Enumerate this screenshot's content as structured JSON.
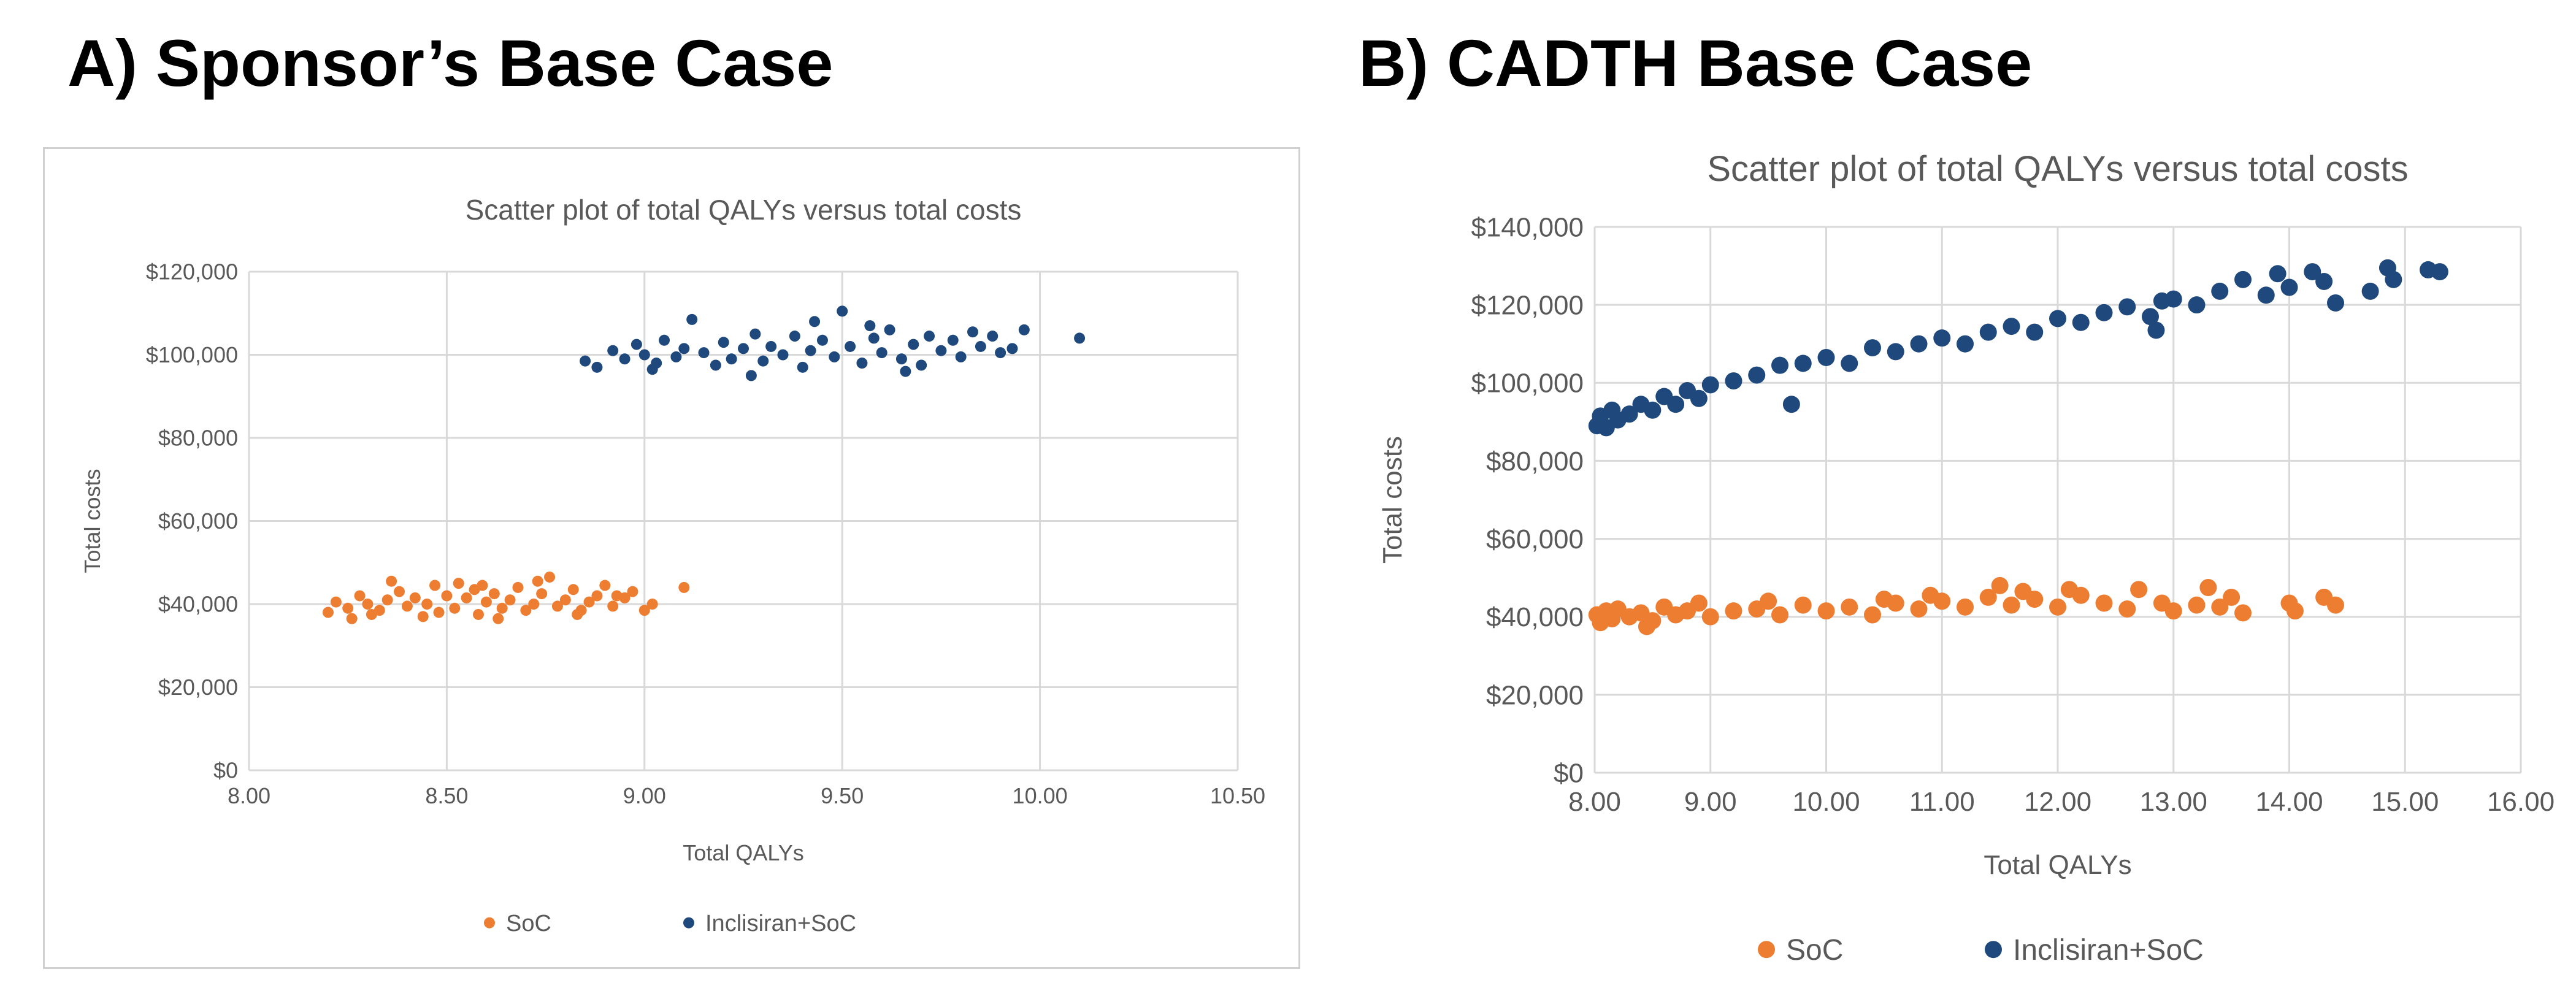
{
  "panels": {
    "a": {
      "heading": "A) Sponsor’s Base Case"
    },
    "b": {
      "heading": "B) CADTH Base Case"
    }
  },
  "colors": {
    "soc": "#ED7D31",
    "inclisiran": "#1F497D",
    "grid": "#d9d9d9",
    "axis_text": "#595959"
  },
  "chart_data": [
    {
      "type": "scatter",
      "title": "Scatter plot of total QALYs versus total costs",
      "xlabel": "Total QALYs",
      "ylabel": "Total costs",
      "xlim": [
        8.0,
        10.5
      ],
      "ylim": [
        0,
        120000
      ],
      "x_ticks": [
        "8.00",
        "8.50",
        "9.00",
        "9.50",
        "10.00",
        "10.50"
      ],
      "y_ticks": [
        "$0",
        "$20,000",
        "$40,000",
        "$60,000",
        "$80,000",
        "$100,000",
        "$120,000"
      ],
      "grid": true,
      "legend_position": "bottom",
      "series": [
        {
          "name": "SoC",
          "color": "#ED7D31",
          "points": [
            [
              8.2,
              38000
            ],
            [
              8.22,
              40500
            ],
            [
              8.25,
              39000
            ],
            [
              8.26,
              36500
            ],
            [
              8.28,
              42000
            ],
            [
              8.3,
              40000
            ],
            [
              8.33,
              38500
            ],
            [
              8.35,
              41000
            ],
            [
              8.38,
              43000
            ],
            [
              8.4,
              39500
            ],
            [
              8.42,
              41500
            ],
            [
              8.45,
              40000
            ],
            [
              8.47,
              44500
            ],
            [
              8.48,
              38000
            ],
            [
              8.5,
              42000
            ],
            [
              8.52,
              39000
            ],
            [
              8.55,
              41500
            ],
            [
              8.57,
              43500
            ],
            [
              8.58,
              37500
            ],
            [
              8.6,
              40500
            ],
            [
              8.62,
              42500
            ],
            [
              8.64,
              39000
            ],
            [
              8.66,
              41000
            ],
            [
              8.68,
              44000
            ],
            [
              8.7,
              38500
            ],
            [
              8.72,
              40000
            ],
            [
              8.74,
              42500
            ],
            [
              8.76,
              46500
            ],
            [
              8.78,
              39500
            ],
            [
              8.8,
              41000
            ],
            [
              8.82,
              43500
            ],
            [
              8.84,
              38500
            ],
            [
              8.86,
              40500
            ],
            [
              8.88,
              42000
            ],
            [
              8.9,
              44500
            ],
            [
              8.92,
              39500
            ],
            [
              8.95,
              41500
            ],
            [
              8.97,
              43000
            ],
            [
              9.0,
              38500
            ],
            [
              9.02,
              40000
            ],
            [
              9.1,
              44000
            ],
            [
              8.36,
              45500
            ],
            [
              8.44,
              37000
            ],
            [
              8.53,
              45000
            ],
            [
              8.63,
              36500
            ],
            [
              8.73,
              45500
            ],
            [
              8.83,
              37500
            ],
            [
              8.93,
              42000
            ],
            [
              8.31,
              37500
            ],
            [
              8.59,
              44500
            ]
          ]
        },
        {
          "name": "Inclisiran+SoC",
          "color": "#1F497D",
          "points": [
            [
              8.85,
              98500
            ],
            [
              8.88,
              97000
            ],
            [
              8.92,
              101000
            ],
            [
              8.95,
              99000
            ],
            [
              8.98,
              102500
            ],
            [
              9.0,
              100000
            ],
            [
              9.03,
              98000
            ],
            [
              9.05,
              103500
            ],
            [
              9.08,
              99500
            ],
            [
              9.1,
              101500
            ],
            [
              9.12,
              108500
            ],
            [
              9.15,
              100500
            ],
            [
              9.18,
              97500
            ],
            [
              9.2,
              103000
            ],
            [
              9.22,
              99000
            ],
            [
              9.25,
              101500
            ],
            [
              9.28,
              105000
            ],
            [
              9.3,
              98500
            ],
            [
              9.32,
              102000
            ],
            [
              9.35,
              100000
            ],
            [
              9.38,
              104500
            ],
            [
              9.4,
              97000
            ],
            [
              9.42,
              101000
            ],
            [
              9.45,
              103500
            ],
            [
              9.48,
              99500
            ],
            [
              9.5,
              110500
            ],
            [
              9.52,
              102000
            ],
            [
              9.55,
              98000
            ],
            [
              9.58,
              104000
            ],
            [
              9.6,
              100500
            ],
            [
              9.62,
              106000
            ],
            [
              9.65,
              99000
            ],
            [
              9.68,
              102500
            ],
            [
              9.7,
              97500
            ],
            [
              9.72,
              104500
            ],
            [
              9.75,
              101000
            ],
            [
              9.78,
              103500
            ],
            [
              9.8,
              99500
            ],
            [
              9.85,
              102000
            ],
            [
              9.88,
              104500
            ],
            [
              9.9,
              100500
            ],
            [
              9.93,
              101500
            ],
            [
              9.96,
              106000
            ],
            [
              10.1,
              104000
            ],
            [
              9.02,
              96500
            ],
            [
              9.27,
              95000
            ],
            [
              9.57,
              107000
            ],
            [
              9.43,
              108000
            ],
            [
              9.66,
              96000
            ],
            [
              9.83,
              105500
            ]
          ]
        }
      ]
    },
    {
      "type": "scatter",
      "title": "Scatter plot of total QALYs versus total costs",
      "xlabel": "Total QALYs",
      "ylabel": "Total costs",
      "xlim": [
        8.0,
        16.0
      ],
      "ylim": [
        0,
        140000
      ],
      "x_ticks": [
        "8.00",
        "9.00",
        "10.00",
        "11.00",
        "12.00",
        "13.00",
        "14.00",
        "15.00",
        "16.00"
      ],
      "y_ticks": [
        "$0",
        "$20,000",
        "$40,000",
        "$60,000",
        "$80,000",
        "$100,000",
        "$120,000",
        "$140,000"
      ],
      "grid": true,
      "legend_position": "bottom",
      "series": [
        {
          "name": "SoC",
          "color": "#ED7D31",
          "points": [
            [
              8.02,
              40500
            ],
            [
              8.05,
              38500
            ],
            [
              8.1,
              41500
            ],
            [
              8.15,
              39500
            ],
            [
              8.2,
              42000
            ],
            [
              8.3,
              40000
            ],
            [
              8.4,
              41000
            ],
            [
              8.5,
              39000
            ],
            [
              8.6,
              42500
            ],
            [
              8.7,
              40500
            ],
            [
              8.8,
              41500
            ],
            [
              8.9,
              43500
            ],
            [
              9.0,
              40000
            ],
            [
              9.2,
              41500
            ],
            [
              9.4,
              42000
            ],
            [
              9.6,
              40500
            ],
            [
              9.8,
              43000
            ],
            [
              10.0,
              41500
            ],
            [
              10.2,
              42500
            ],
            [
              10.4,
              40500
            ],
            [
              10.6,
              43500
            ],
            [
              10.8,
              42000
            ],
            [
              11.0,
              44000
            ],
            [
              11.2,
              42500
            ],
            [
              11.4,
              45000
            ],
            [
              11.6,
              43000
            ],
            [
              11.8,
              44500
            ],
            [
              12.0,
              42500
            ],
            [
              12.2,
              45500
            ],
            [
              12.4,
              43500
            ],
            [
              12.6,
              42000
            ],
            [
              12.7,
              47000
            ],
            [
              12.9,
              43500
            ],
            [
              13.0,
              41500
            ],
            [
              13.2,
              43000
            ],
            [
              13.3,
              47500
            ],
            [
              13.4,
              42500
            ],
            [
              13.5,
              45000
            ],
            [
              13.6,
              41000
            ],
            [
              14.0,
              43500
            ],
            [
              14.05,
              41500
            ],
            [
              14.3,
              45000
            ],
            [
              14.4,
              43000
            ],
            [
              11.5,
              48000
            ],
            [
              10.9,
              45500
            ],
            [
              9.5,
              44000
            ],
            [
              8.45,
              37500
            ],
            [
              12.1,
              47000
            ],
            [
              11.7,
              46500
            ],
            [
              10.5,
              44500
            ]
          ]
        },
        {
          "name": "Inclisiran+SoC",
          "color": "#1F497D",
          "points": [
            [
              8.02,
              89000
            ],
            [
              8.05,
              91500
            ],
            [
              8.1,
              88500
            ],
            [
              8.15,
              93000
            ],
            [
              8.2,
              90500
            ],
            [
              8.3,
              92000
            ],
            [
              8.4,
              94500
            ],
            [
              8.5,
              93000
            ],
            [
              8.6,
              96500
            ],
            [
              8.7,
              94500
            ],
            [
              8.8,
              98000
            ],
            [
              8.9,
              96000
            ],
            [
              9.0,
              99500
            ],
            [
              9.2,
              100500
            ],
            [
              9.4,
              102000
            ],
            [
              9.6,
              104500
            ],
            [
              9.7,
              94500
            ],
            [
              9.8,
              105000
            ],
            [
              10.0,
              106500
            ],
            [
              10.2,
              105000
            ],
            [
              10.4,
              109000
            ],
            [
              10.6,
              108000
            ],
            [
              10.8,
              110000
            ],
            [
              11.0,
              111500
            ],
            [
              11.2,
              110000
            ],
            [
              11.4,
              113000
            ],
            [
              11.6,
              114500
            ],
            [
              11.8,
              113000
            ],
            [
              12.0,
              116500
            ],
            [
              12.2,
              115500
            ],
            [
              12.4,
              118000
            ],
            [
              12.6,
              119500
            ],
            [
              12.8,
              117000
            ],
            [
              12.9,
              121000
            ],
            [
              13.0,
              121500
            ],
            [
              13.2,
              120000
            ],
            [
              13.4,
              123500
            ],
            [
              13.6,
              126500
            ],
            [
              13.8,
              122500
            ],
            [
              13.9,
              128000
            ],
            [
              14.0,
              124500
            ],
            [
              14.2,
              128500
            ],
            [
              14.3,
              126000
            ],
            [
              14.4,
              120500
            ],
            [
              14.7,
              123500
            ],
            [
              14.85,
              129500
            ],
            [
              14.9,
              126500
            ],
            [
              15.2,
              129000
            ],
            [
              15.3,
              128500
            ],
            [
              12.85,
              113500
            ]
          ]
        }
      ]
    }
  ]
}
